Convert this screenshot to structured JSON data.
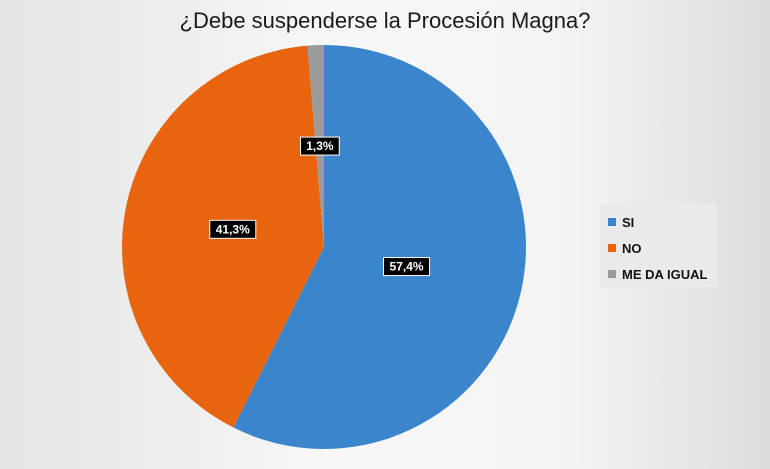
{
  "chart_data": {
    "type": "pie",
    "title": "¿Debe suspenderse la Procesión Magna?",
    "slices": [
      {
        "name": "SI",
        "value": 57.4,
        "label": "57,4%",
        "color": "#3b85cc"
      },
      {
        "name": "NO",
        "value": 41.3,
        "label": "41,3%",
        "color": "#e8640f"
      },
      {
        "name": "ME DA IGUAL",
        "value": 1.3,
        "label": "1,3%",
        "color": "#9b9b9b"
      }
    ],
    "legend": "right",
    "start": "12 o'clock",
    "direction": "clockwise"
  }
}
